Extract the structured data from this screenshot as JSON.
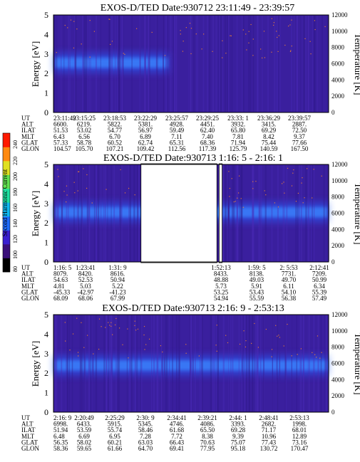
{
  "colorbar": {
    "title": "Second Harmonic Current",
    "ticks": [
      "80",
      "100",
      "120",
      "140",
      "160",
      "180",
      "200",
      "220",
      "240"
    ],
    "colors": [
      "#000000",
      "#3a0f7a",
      "#3a1fd0",
      "#1f6cff",
      "#10b8f0",
      "#1fe0a0",
      "#60e050",
      "#e0e020",
      "#ff8a10",
      "#ff1a00"
    ]
  },
  "colors": {
    "background": "#3a1f9e",
    "band_blue": "#2a62ff",
    "band_core": "#3a88ff",
    "dots": "#ff8a2a"
  },
  "chart_data": [
    {
      "type": "heatmap",
      "title": "EXOS-D/TED   Date:930712  23:11:49 - 23:39:57",
      "ylabel": "Energy [eV]",
      "y2label": "Temperature [K]",
      "ylim": [
        0,
        5
      ],
      "y_ticks": [
        "0",
        "1",
        "2",
        "3",
        "4",
        "5"
      ],
      "y2lim": [
        0,
        12000
      ],
      "y2_ticks": [
        "0",
        "2000",
        "4000",
        "6000",
        "8000",
        "10000",
        "12000"
      ],
      "band_energy_ev": 2.55,
      "band_span_fraction": [
        0.0,
        0.42
      ],
      "data_gaps_fraction": [],
      "table": {
        "labels": [
          "UT",
          "ALT",
          "ILAT",
          "MLT",
          "GLAT",
          "GLON"
        ],
        "columns": [
          [
            "23:11:49",
            "6600.",
            "51.53",
            "6.43",
            "57.33",
            "104.57"
          ],
          [
            "23:15:25",
            "6219.",
            "53.02",
            "6.56",
            "58.78",
            "105.70"
          ],
          [
            "23:18:53",
            "5822.",
            "54.77",
            "6.70",
            "60.52",
            "107.21"
          ],
          [
            "23:22:29",
            "5381.",
            "56.97",
            "6.89",
            "62.74",
            "109.42"
          ],
          [
            "23:25:57",
            "4928.",
            "59.49",
            "7.11",
            "65.31",
            "112.56"
          ],
          [
            "23:29:25",
            "4451.",
            "62.40",
            "7.40",
            "68.36",
            "117.39"
          ],
          [
            "23:33: 1",
            "3932.",
            "65.80",
            "7.81",
            "71.94",
            "125.79"
          ],
          [
            "23:36:29",
            "3415.",
            "69.29",
            "8.42",
            "75.44",
            "140.59"
          ],
          [
            "23:39:57",
            "2887.",
            "72.50",
            "9.37",
            "77.66",
            "167.50"
          ]
        ]
      }
    },
    {
      "type": "heatmap",
      "title": "EXOS-D/TED   Date:930713  1:16: 5 - 2:16: 1",
      "ylabel": "Energy [eV]",
      "y2label": "Temperature [K]",
      "ylim": [
        0,
        5
      ],
      "y_ticks": [
        "0",
        "1",
        "2",
        "3",
        "4",
        "5"
      ],
      "y2lim": [
        0,
        12000
      ],
      "y2_ticks": [
        "0",
        "2000",
        "4000",
        "6000",
        "8000",
        "10000",
        "12000"
      ],
      "band_energy_ev": 2.55,
      "band_span_fraction": [
        0.0,
        1.0
      ],
      "data_gaps_fraction": [
        [
          0.318,
          0.594
        ],
        [
          0.602,
          0.613
        ]
      ],
      "table": {
        "labels": [
          "UT",
          "ALT",
          "ILAT",
          "MLT",
          "GLAT",
          "GLON"
        ],
        "columns": [
          [
            "1:16: 5",
            "8079.",
            "54.63",
            "4.81",
            "-45.33",
            "68.09"
          ],
          [
            "1:23:41",
            "8420.",
            "52.53",
            "5.03",
            "-42.97",
            "68.06"
          ],
          [
            "1:31: 9",
            "8616.",
            "50.94",
            "5.22",
            "-41.23",
            "67.99"
          ],
          [
            "1:52:13",
            "8433.",
            "48.88",
            "5.73",
            "53.25",
            "54.94"
          ],
          [
            "1:59: 5",
            "8138.",
            "49.03",
            "5.91",
            "53.43",
            "55.59"
          ],
          [
            "2: 5:53",
            "7731.",
            "49.70",
            "6.11",
            "54.10",
            "56.38"
          ],
          [
            "2:12:41",
            "7209.",
            "50.99",
            "6.34",
            "55.39",
            "57.49"
          ]
        ]
      }
    },
    {
      "type": "heatmap",
      "title": "EXOS-D/TED   Date:930713  2:16: 9 - 2:53:13",
      "ylabel": "Energy [eV]",
      "y2label": "Temperature [K]",
      "ylim": [
        0,
        5
      ],
      "y_ticks": [
        "0",
        "1",
        "2",
        "3",
        "4",
        "5"
      ],
      "y2lim": [
        0,
        12000
      ],
      "y2_ticks": [
        "0",
        "2000",
        "4000",
        "6000",
        "8000",
        "10000",
        "12000"
      ],
      "band_energy_ev": 2.4,
      "band_span_fraction": [
        0.0,
        1.0
      ],
      "data_gaps_fraction": [],
      "table": {
        "labels": [
          "UT",
          "ALT",
          "ILAT",
          "MLT",
          "GLAT",
          "GLON"
        ],
        "columns": [
          [
            "2:16: 9",
            "6998.",
            "51.94",
            "6.48",
            "56.35",
            "58.36"
          ],
          [
            "2:20:49",
            "6433.",
            "53.59",
            "6.69",
            "58.02",
            "59.65"
          ],
          [
            "2:25:29",
            "5915.",
            "55.74",
            "6.95",
            "60.21",
            "61.66"
          ],
          [
            "2:30: 9",
            "5345.",
            "58.46",
            "7.28",
            "63.03",
            "64.70"
          ],
          [
            "2:34:41",
            "4746.",
            "61.68",
            "7.72",
            "66.43",
            "69.41"
          ],
          [
            "2:39:21",
            "4086.",
            "65.50",
            "8.38",
            "70.63",
            "77.95"
          ],
          [
            "2:44: 1",
            "3393.",
            "69.28",
            "9.39",
            "75.07",
            "95.18"
          ],
          [
            "2:48:41",
            "2682.",
            "71.17",
            "10.96",
            "77.43",
            "130.72"
          ],
          [
            "2:53:13",
            "1998.",
            "68.01",
            "12.89",
            "73.16",
            "170.47"
          ]
        ]
      }
    }
  ]
}
